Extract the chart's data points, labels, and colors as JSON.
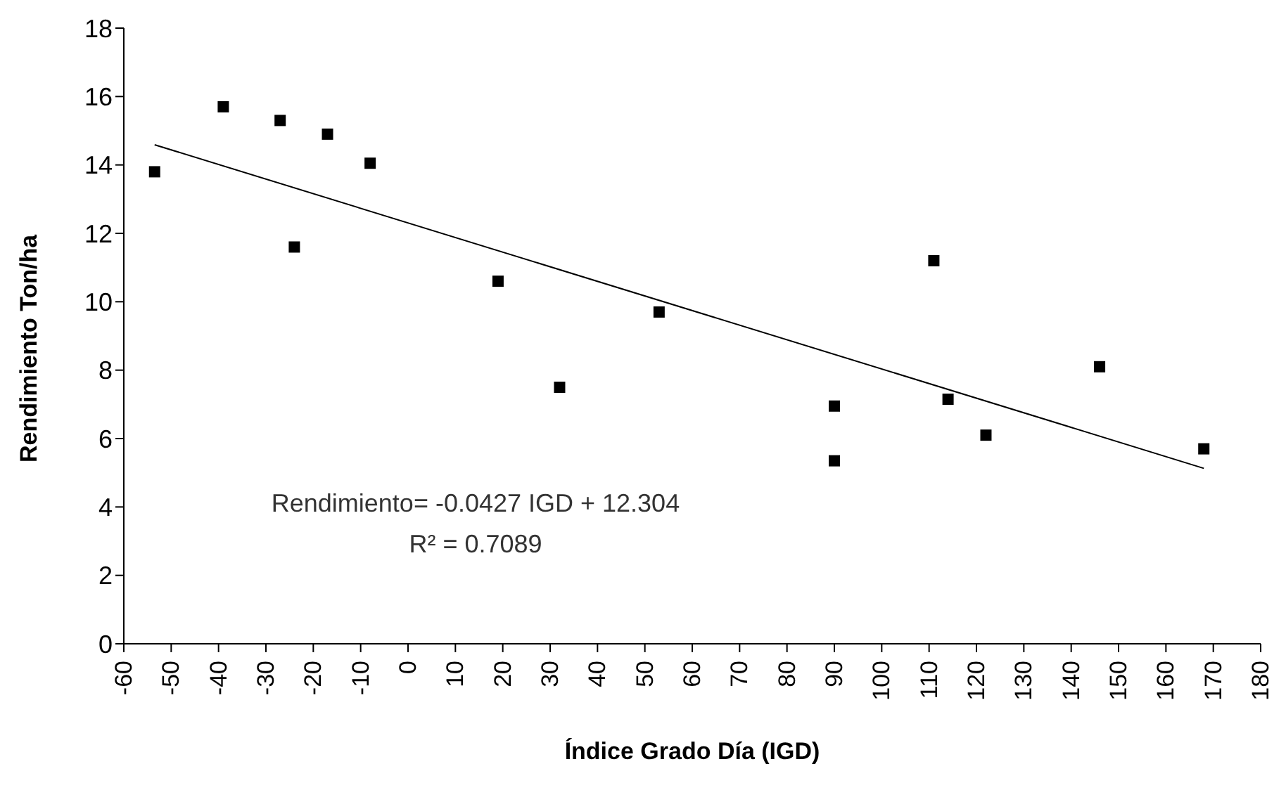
{
  "chart_data": {
    "type": "scatter",
    "xlabel": "Índice Grado Día (IGD)",
    "ylabel": "Rendimiento Ton/ha",
    "annotations": [
      "Rendimiento= -0.0427 IGD + 12.304",
      "R² = 0.7089"
    ],
    "series": [
      {
        "type": "scatter",
        "color": "#000000",
        "x": [
          -53.5,
          -39,
          -27,
          -24,
          -17,
          -8,
          19,
          32,
          53,
          90,
          90,
          111,
          114,
          122,
          146,
          168
        ],
        "values": [
          13.8,
          15.7,
          15.3,
          11.6,
          14.9,
          14.05,
          10.6,
          7.5,
          9.7,
          6.95,
          5.35,
          11.2,
          7.15,
          6.1,
          8.1,
          5.7
        ],
        "marker": "square"
      },
      {
        "type": "line",
        "color": "#000000",
        "x": [
          -53.5,
          168
        ],
        "values": [
          14.59,
          5.13
        ],
        "marker": "none"
      }
    ],
    "grid": false,
    "xlim": [
      -60,
      180
    ],
    "xticks": [
      -60,
      -50,
      -40,
      -30,
      -20,
      -10,
      0,
      10,
      20,
      30,
      40,
      50,
      60,
      70,
      80,
      90,
      100,
      110,
      120,
      130,
      140,
      150,
      160,
      170,
      180
    ],
    "ylim": [
      0,
      18
    ],
    "yticks": [
      0,
      2,
      4,
      6,
      8,
      10,
      12,
      14,
      16,
      18
    ]
  }
}
